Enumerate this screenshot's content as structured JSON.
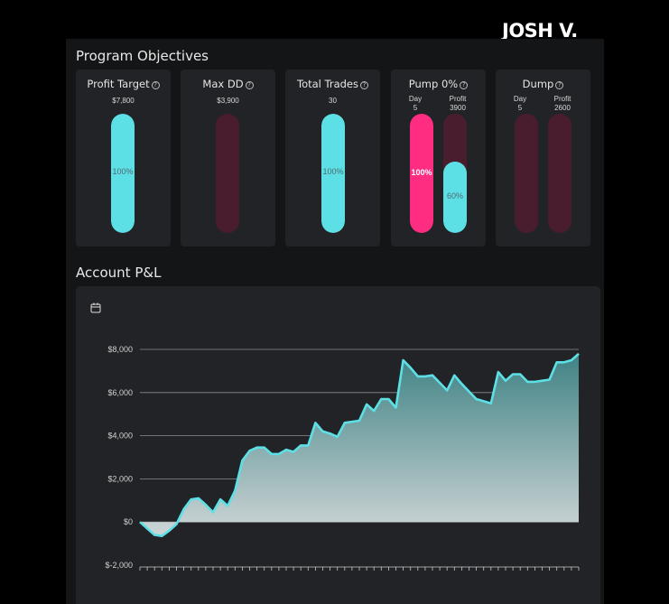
{
  "brand": {
    "name": "JOSH V."
  },
  "objectives": {
    "title": "Program Objectives",
    "cards": [
      {
        "title": "Profit Target",
        "value": "$7,800",
        "progress": 1.0,
        "label": "100%"
      },
      {
        "title": "Max DD",
        "value": "$3,900",
        "progress": 0.0,
        "label": ""
      },
      {
        "title": "Total Trades",
        "value": "30",
        "progress": 1.0,
        "label": "100%"
      },
      {
        "title": "Pump 0%",
        "day_label": "Day",
        "day_value": "5",
        "profit_label": "Profit",
        "profit_value": "3900",
        "day_progress": 1.0,
        "day_bar_label": "100%",
        "profit_progress": 0.6,
        "profit_bar_label": "60%"
      },
      {
        "title": "Dump",
        "day_label": "Day",
        "day_value": "5",
        "profit_label": "Profit",
        "profit_value": "2600",
        "day_progress": 0.0,
        "profit_progress": 0.0
      }
    ]
  },
  "colors": {
    "cyan": "#5ce0e6",
    "pink": "#ff2d82",
    "empty_track": "#4a1d2e",
    "line": "#5ce0e6"
  },
  "pnl": {
    "title": "Account P&L",
    "icon": "calendar-icon"
  },
  "chart_data": {
    "type": "area",
    "ylim": [
      -2000,
      8000
    ],
    "y_ticks": [
      "$8,000",
      "$6,000",
      "$4,000",
      "$2,000",
      "$0",
      "$-2,000"
    ],
    "y_tick_values": [
      8000,
      6000,
      4000,
      2000,
      0,
      -2000
    ],
    "grid": true,
    "values": [
      0,
      -300,
      -600,
      -650,
      -400,
      -100,
      600,
      1050,
      1100,
      800,
      450,
      1050,
      750,
      1450,
      2850,
      3300,
      3450,
      3450,
      3150,
      3150,
      3350,
      3250,
      3550,
      3550,
      4600,
      4200,
      4100,
      3950,
      4600,
      4650,
      4700,
      5450,
      5150,
      5700,
      5700,
      5300,
      7500,
      7150,
      6750,
      6750,
      6800,
      6450,
      6100,
      6800,
      6400,
      6050,
      5700,
      5600,
      5500,
      6950,
      6550,
      6850,
      6850,
      6500,
      6500,
      6550,
      6600,
      7400,
      7400,
      7500,
      7800
    ]
  }
}
